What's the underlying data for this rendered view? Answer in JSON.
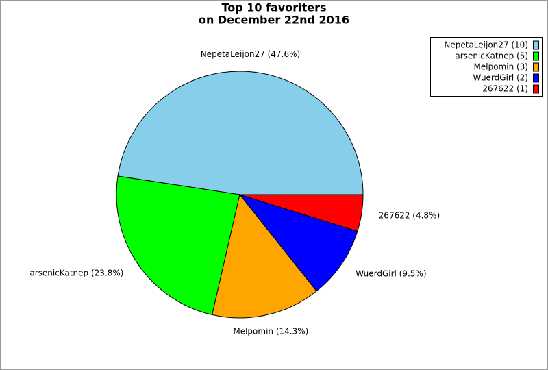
{
  "chart_data": {
    "type": "pie",
    "title": [
      "Top 10 favoriters",
      "on December 22nd 2016"
    ],
    "values": [
      47.6,
      23.8,
      14.3,
      9.5,
      4.8
    ],
    "value_labels": [
      "NepetaLeijon27 (47.6%)",
      "arsenicKatnep (23.8%)",
      "Melpomin (14.3%)",
      "WuerdGirl (9.5%)",
      "267622 (4.8%)"
    ],
    "legend": [
      "NepetaLeijon27 (10)",
      "arsenicKatnep (5)",
      "Melpomin (3)",
      "WuerdGirl (2)",
      "267622 (1)"
    ],
    "colors": [
      "#87ceeb",
      "#00ff00",
      "#ffa500",
      "#0000ff",
      "#ff0000"
    ],
    "legend_position": "upper right"
  }
}
